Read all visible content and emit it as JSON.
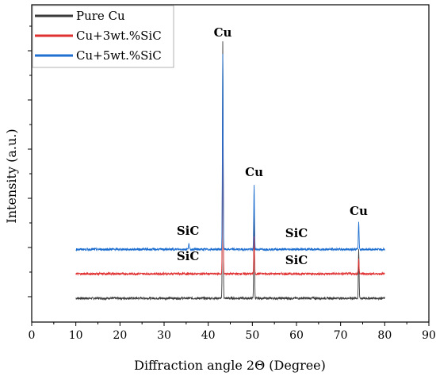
{
  "chart_data": {
    "type": "line",
    "title": "",
    "xlabel": "Diffraction angle 2Θ (Degree)",
    "ylabel": "Intensity (a.u.)",
    "xlim": [
      0,
      90
    ],
    "x_ticks": [
      "0",
      "10",
      "20",
      "30",
      "40",
      "50",
      "60",
      "70",
      "80",
      "90"
    ],
    "y_tick_labels_shown": false,
    "grid": false,
    "legend_position": "top-left",
    "x_range": [
      10,
      80
    ],
    "series": [
      {
        "name": "Pure Cu",
        "color": "#3a3a3a",
        "baseline": 0,
        "peaks": [
          {
            "x": 43.3,
            "height": 10.5
          },
          {
            "x": 50.4,
            "height": 3.6
          },
          {
            "x": 74.1,
            "height": 2.0
          }
        ]
      },
      {
        "name": "Cu+3wt.%SiC",
        "color": "#e03030",
        "baseline": 1.0,
        "peaks": [
          {
            "x": 43.3,
            "height": 7.6
          },
          {
            "x": 50.4,
            "height": 1.5
          },
          {
            "x": 74.1,
            "height": 0.6
          }
        ]
      },
      {
        "name": "Cu+5wt.%SiC",
        "color": "#1f6fd0",
        "baseline": 2.0,
        "peaks": [
          {
            "x": 35.6,
            "height": 0.25
          },
          {
            "x": 43.3,
            "height": 8.0
          },
          {
            "x": 50.4,
            "height": 2.6
          },
          {
            "x": 74.1,
            "height": 1.1
          }
        ]
      }
    ],
    "annotations": [
      {
        "text": "Cu",
        "x": 43.3,
        "y": 10.7
      },
      {
        "text": "Cu",
        "x": 50.4,
        "y": 5.0
      },
      {
        "text": "Cu",
        "x": 74.1,
        "y": 3.4
      },
      {
        "text": "SiC",
        "x": 35.4,
        "y": 2.6
      },
      {
        "text": "SiC",
        "x": 35.4,
        "y": 1.55
      },
      {
        "text": "SiC",
        "x": 60.0,
        "y": 2.5
      },
      {
        "text": "SiC",
        "x": 60.0,
        "y": 1.4
      }
    ]
  }
}
